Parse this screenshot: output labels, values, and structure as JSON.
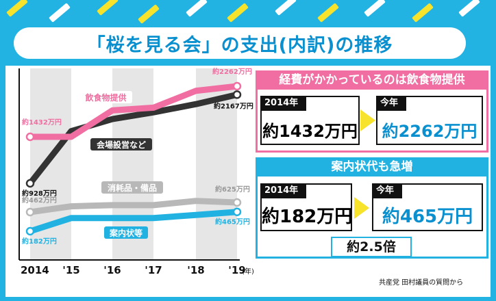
{
  "title": "「桜を見る会」の支出(内訳)の推移",
  "colors": {
    "background": "#23b3e3",
    "food": "#f06ea1",
    "venue": "#333333",
    "supplies": "#b8b8b8",
    "invitation": "#21b2e2",
    "year_band": "#e6e6e6",
    "stripes": [
      "#f7e32b",
      "#ffffff"
    ]
  },
  "chart_data": {
    "type": "line",
    "x": [
      "2014",
      "'15",
      "'16",
      "'17",
      "'18",
      "'19"
    ],
    "x_unit": "(年)",
    "y_unit": "万円",
    "series": [
      {
        "name": "飲食物提供",
        "values": [
          1432,
          1432,
          1980,
          2020,
          2210,
          2262
        ],
        "labels": [
          {
            "i": 0,
            "text": "約1432万円"
          },
          {
            "i": 5,
            "text": "約2262万円"
          }
        ]
      },
      {
        "name": "会場設営など",
        "values": [
          928,
          1550,
          1800,
          1940,
          2060,
          2167
        ],
        "labels": [
          {
            "i": 0,
            "text": "約928万円"
          },
          {
            "i": 5,
            "text": "約2167万円"
          }
        ]
      },
      {
        "name": "消耗品・備品",
        "values": [
          462,
          560,
          580,
          580,
          650,
          625
        ],
        "labels": [
          {
            "i": 0,
            "text": "約462万円"
          },
          {
            "i": 5,
            "text": "約625万円"
          }
        ]
      },
      {
        "name": "案内状等",
        "values": [
          182,
          375,
          375,
          375,
          420,
          465
        ],
        "labels": [
          {
            "i": 0,
            "text": "約182万円"
          },
          {
            "i": 5,
            "text": "約465万円"
          }
        ]
      }
    ]
  },
  "callout_food": {
    "heading": "経費がかかっているのは飲食物提供",
    "from_tag": "2014年",
    "from_value": "約1432万円",
    "to_tag": "今年",
    "to_value": "約2262万円"
  },
  "callout_invitation": {
    "heading": "案内状代も急増",
    "from_tag": "2014年",
    "from_value": "約182万円",
    "to_tag": "今年",
    "to_value": "約465万円",
    "multiplier": "約2.5倍"
  },
  "source": "共産党 田村議員の質問から"
}
